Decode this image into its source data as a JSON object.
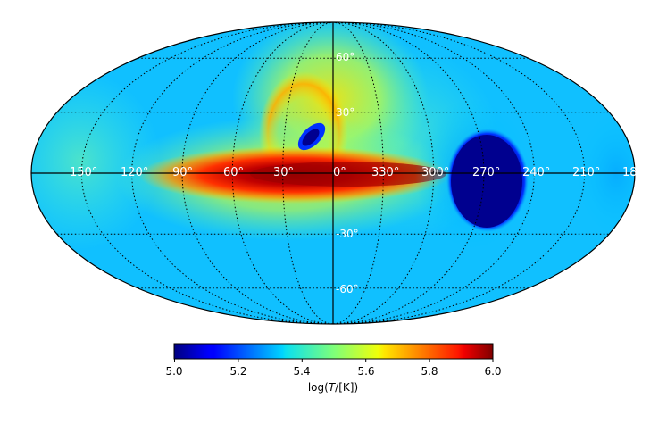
{
  "map": {
    "projection": "mollweide",
    "grid": true,
    "longitude_labels": [
      "150°",
      "120°",
      "90°",
      "60°",
      "30°",
      "0°",
      "330°",
      "300°",
      "270°",
      "240°",
      "210°",
      "18"
    ],
    "latitude_labels": [
      "60°",
      "30°",
      "-30°",
      "-60°"
    ]
  },
  "colorbar": {
    "colormap": "jet",
    "min": 5.0,
    "max": 6.0,
    "ticks": [
      "5.0",
      "5.2",
      "5.4",
      "5.6",
      "5.8",
      "6.0"
    ],
    "label_prefix": "log(",
    "label_var": "T",
    "label_suffix": "/[K])"
  }
}
